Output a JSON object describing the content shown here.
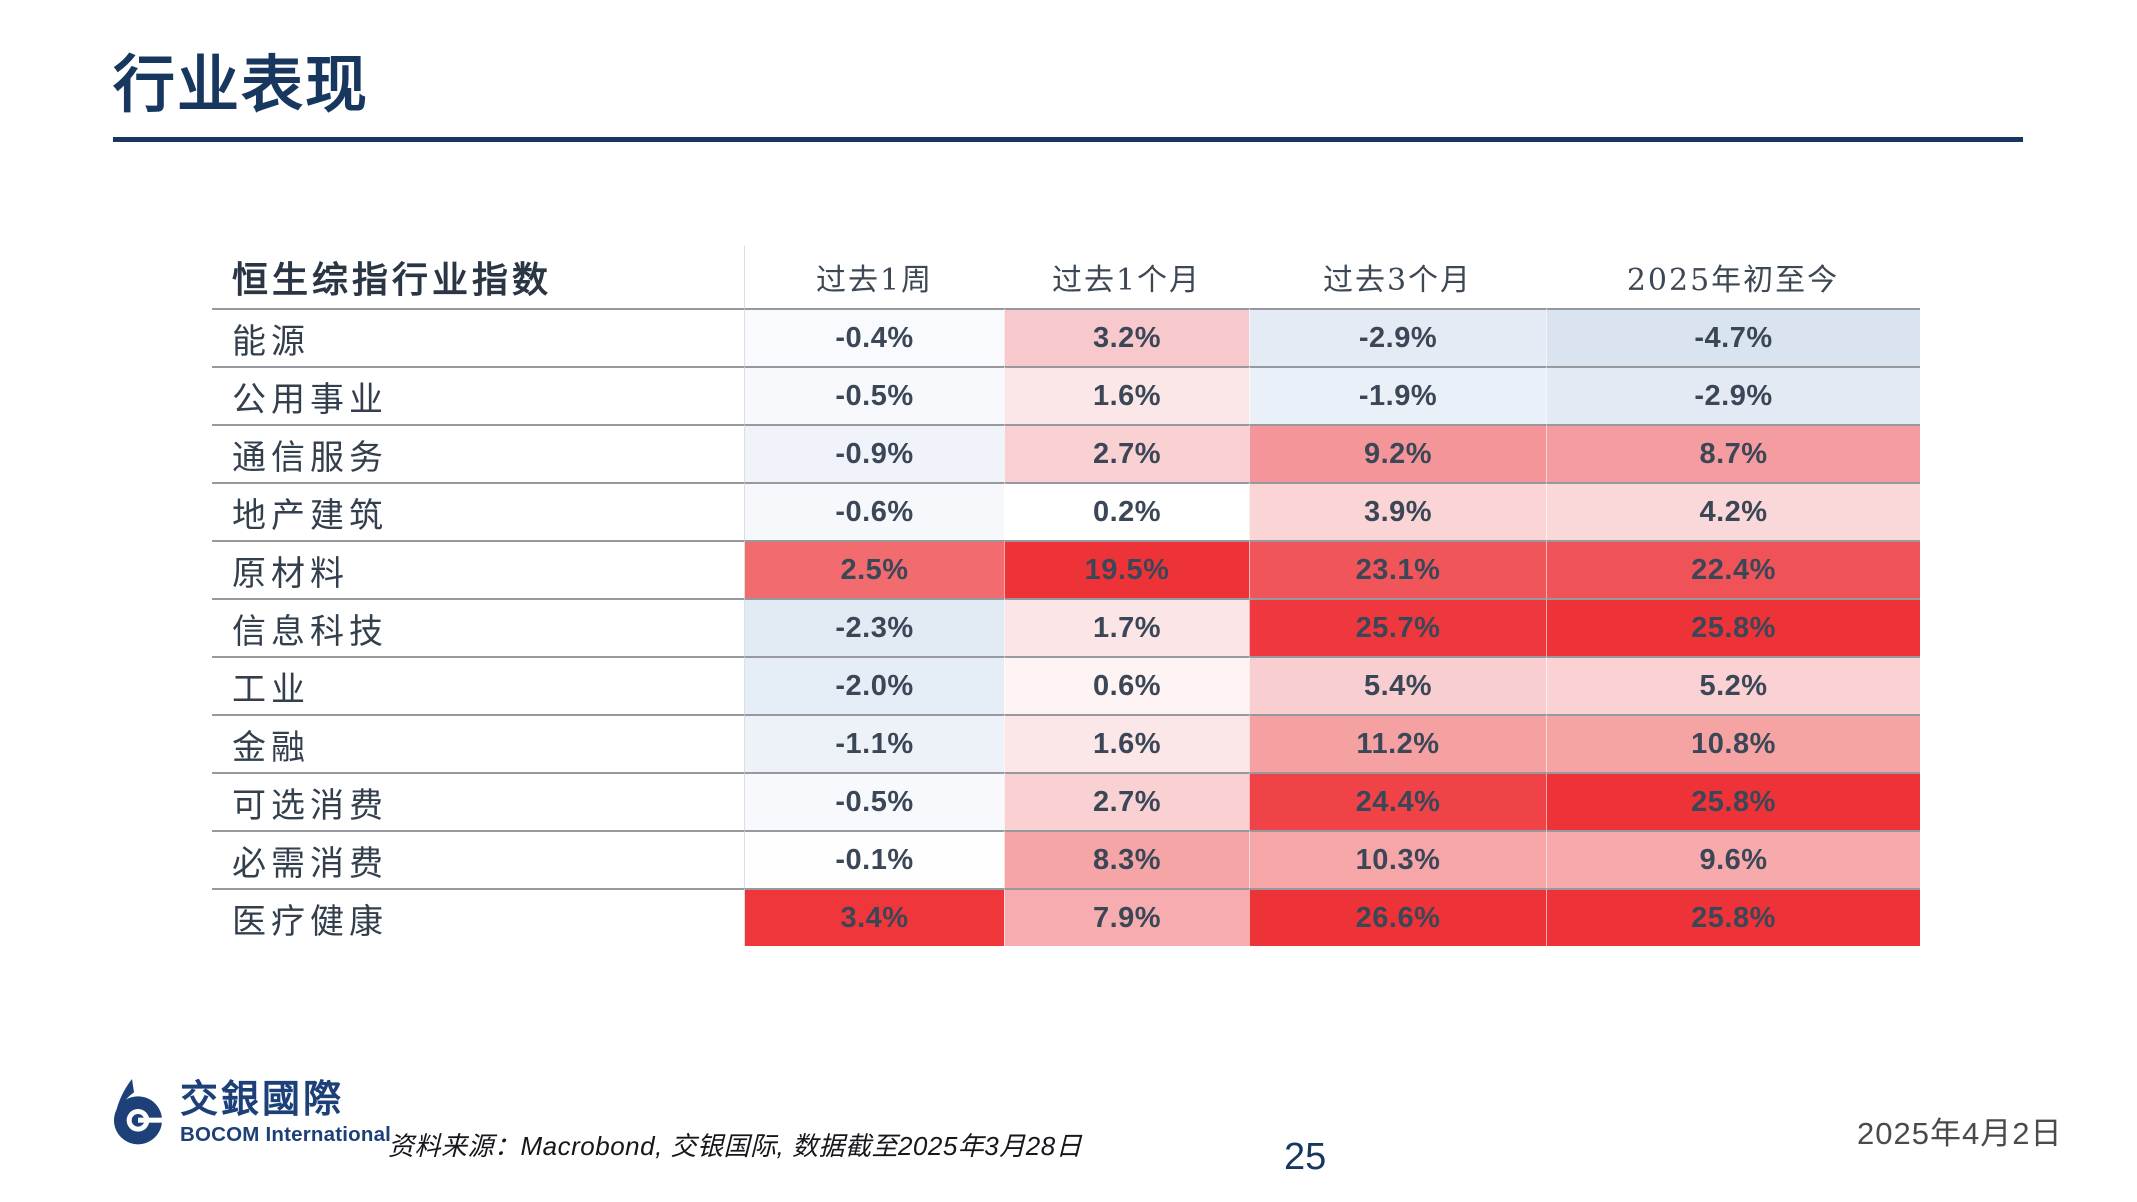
{
  "slide": {
    "title": "行业表现",
    "page_number": "25",
    "date": "2025年4月2日",
    "source": "资料来源：Macrobond, 交银国际, 数据截至2025年3月28日",
    "logo": {
      "zh": "交銀國際",
      "en": "BOCOM International"
    }
  },
  "colors": {
    "accent_navy": "#17375E",
    "logo_navy": "#1C4077",
    "strong_red": "#EE3338",
    "strong_blue": "#D9E4F0",
    "row_border": "#97999E",
    "value_text": "#3B4757"
  },
  "table": {
    "header": {
      "label": "恒生综指行业指数",
      "columns": [
        "过去1周",
        "过去1个月",
        "过去3个月",
        "2025年初至今"
      ]
    },
    "rows": [
      {
        "label": "能源",
        "cells": [
          {
            "value": "-0.4%",
            "bg": "#F8FAFD"
          },
          {
            "value": "3.2%",
            "bg": "#F8C9CC"
          },
          {
            "value": "-2.9%",
            "bg": "#E4EBF4"
          },
          {
            "value": "-4.7%",
            "bg": "#D9E4F0"
          }
        ]
      },
      {
        "label": "公用事业",
        "cells": [
          {
            "value": "-0.5%",
            "bg": "#F7F9FC"
          },
          {
            "value": "1.6%",
            "bg": "#FCE7E8"
          },
          {
            "value": "-1.9%",
            "bg": "#EAF0F7"
          },
          {
            "value": "-2.9%",
            "bg": "#E3EAF3"
          }
        ]
      },
      {
        "label": "通信服务",
        "cells": [
          {
            "value": "-0.9%",
            "bg": "#F0F4FA"
          },
          {
            "value": "2.7%",
            "bg": "#F9D1D3"
          },
          {
            "value": "9.2%",
            "bg": "#F49699"
          },
          {
            "value": "8.7%",
            "bg": "#F59CA0"
          }
        ]
      },
      {
        "label": "地产建筑",
        "cells": [
          {
            "value": "-0.6%",
            "bg": "#F6F8FC"
          },
          {
            "value": "0.2%",
            "bg": "#FFFFFF"
          },
          {
            "value": "3.9%",
            "bg": "#FBD5D6"
          },
          {
            "value": "4.2%",
            "bg": "#FAD7D8"
          }
        ]
      },
      {
        "label": "原材料",
        "cells": [
          {
            "value": "2.5%",
            "bg": "#F26B6E"
          },
          {
            "value": "19.5%",
            "bg": "#EE3338"
          },
          {
            "value": "23.1%",
            "bg": "#F05559"
          },
          {
            "value": "22.4%",
            "bg": "#F05357"
          }
        ]
      },
      {
        "label": "信息科技",
        "cells": [
          {
            "value": "-2.3%",
            "bg": "#E2EAF3"
          },
          {
            "value": "1.7%",
            "bg": "#FBE5E6"
          },
          {
            "value": "25.7%",
            "bg": "#EE383D"
          },
          {
            "value": "25.8%",
            "bg": "#EE3338"
          }
        ]
      },
      {
        "label": "工业",
        "cells": [
          {
            "value": "-2.0%",
            "bg": "#E5EDF6"
          },
          {
            "value": "0.6%",
            "bg": "#FEF4F4"
          },
          {
            "value": "5.4%",
            "bg": "#F9CED0"
          },
          {
            "value": "5.2%",
            "bg": "#FAD2D3"
          }
        ]
      },
      {
        "label": "金融",
        "cells": [
          {
            "value": "-1.1%",
            "bg": "#EDF2F8"
          },
          {
            "value": "1.6%",
            "bg": "#FCE7E8"
          },
          {
            "value": "11.2%",
            "bg": "#F5A1A2"
          },
          {
            "value": "10.8%",
            "bg": "#F6A3A4"
          }
        ]
      },
      {
        "label": "可选消费",
        "cells": [
          {
            "value": "-0.5%",
            "bg": "#F7F9FC"
          },
          {
            "value": "2.7%",
            "bg": "#F9D1D3"
          },
          {
            "value": "24.4%",
            "bg": "#EF4348"
          },
          {
            "value": "25.8%",
            "bg": "#EE3338"
          }
        ]
      },
      {
        "label": "必需消费",
        "cells": [
          {
            "value": "-0.1%",
            "bg": "#FEFEFF"
          },
          {
            "value": "8.3%",
            "bg": "#F6A5A7"
          },
          {
            "value": "10.3%",
            "bg": "#F6A6A7"
          },
          {
            "value": "9.6%",
            "bg": "#F7AAAB"
          }
        ]
      },
      {
        "label": "医疗健康",
        "cells": [
          {
            "value": "3.4%",
            "bg": "#EE363B"
          },
          {
            "value": "7.9%",
            "bg": "#F7ADAF"
          },
          {
            "value": "26.6%",
            "bg": "#ED3338"
          },
          {
            "value": "25.8%",
            "bg": "#EE3338"
          }
        ]
      }
    ]
  }
}
